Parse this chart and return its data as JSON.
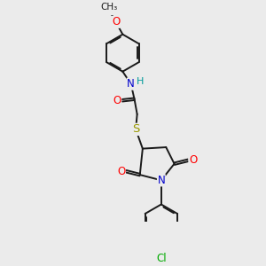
{
  "bg_color": "#ebebeb",
  "bond_color": "#1a1a1a",
  "bond_width": 1.4,
  "atom_colors": {
    "O": "#ff0000",
    "N": "#0000cc",
    "S": "#999900",
    "Cl": "#00aa00",
    "C": "#1a1a1a",
    "H": "#009999"
  },
  "font_size": 8.5
}
